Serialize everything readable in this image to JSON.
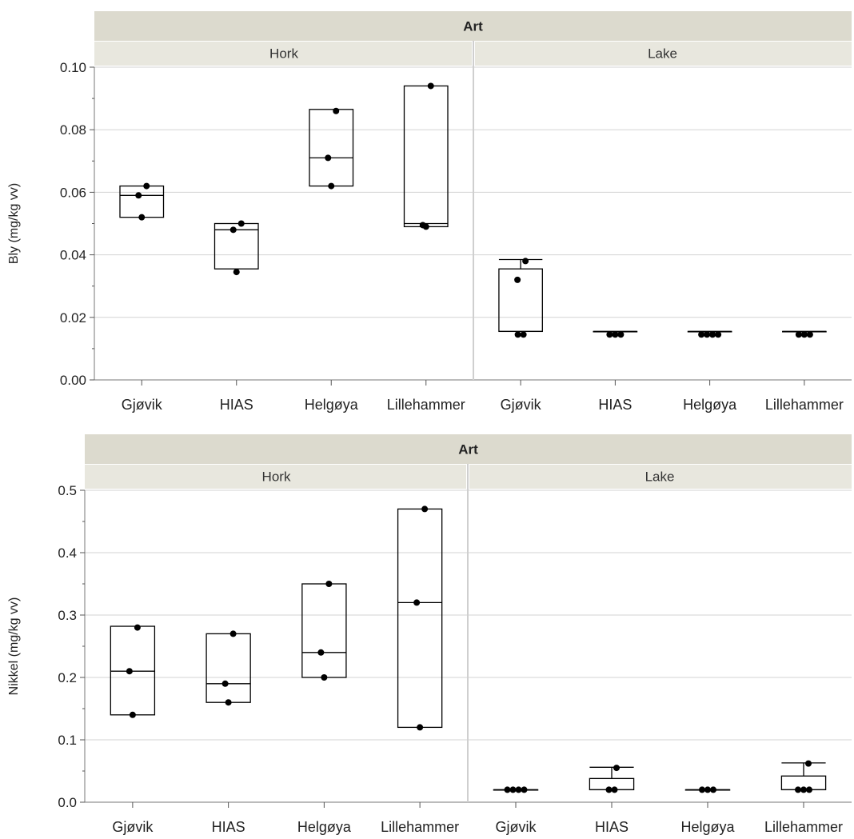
{
  "chart_data": [
    {
      "type": "boxplot",
      "group_header": "Art",
      "facets": [
        "Hork",
        "Lake"
      ],
      "categories": [
        "Gjøvik",
        "HIAS",
        "Helgøya",
        "Lillehammer"
      ],
      "ylabel": "Bly (mg/kg vv)",
      "ylim": [
        0,
        0.1
      ],
      "yticks": [
        "0.00",
        "0.02",
        "0.04",
        "0.06",
        "0.08",
        "0.10"
      ],
      "grid": true,
      "series": [
        {
          "facet": "Hork",
          "boxes": [
            {
              "category": "Gjøvik",
              "q1": 0.052,
              "median": 0.059,
              "q3": 0.062,
              "whisker_low": 0.052,
              "whisker_high": 0.062,
              "points": [
                0.062,
                0.059,
                0.052
              ]
            },
            {
              "category": "HIAS",
              "q1": 0.0355,
              "median": 0.048,
              "q3": 0.05,
              "whisker_low": 0.0355,
              "whisker_high": 0.05,
              "points": [
                0.05,
                0.048,
                0.0345
              ]
            },
            {
              "category": "Helgøya",
              "q1": 0.062,
              "median": 0.071,
              "q3": 0.0865,
              "whisker_low": 0.062,
              "whisker_high": 0.0865,
              "points": [
                0.086,
                0.071,
                0.062
              ]
            },
            {
              "category": "Lillehammer",
              "q1": 0.049,
              "median": 0.05,
              "q3": 0.094,
              "whisker_low": 0.049,
              "whisker_high": 0.094,
              "points": [
                0.094,
                0.0495,
                0.049
              ]
            }
          ]
        },
        {
          "facet": "Lake",
          "boxes": [
            {
              "category": "Gjøvik",
              "q1": 0.0155,
              "median": 0.0155,
              "q3": 0.0355,
              "whisker_low": 0.0155,
              "whisker_high": 0.0385,
              "points": [
                0.038,
                0.032,
                0.0145,
                0.0145
              ]
            },
            {
              "category": "HIAS",
              "q1": 0.0155,
              "median": 0.0155,
              "q3": 0.0155,
              "whisker_low": 0.0155,
              "whisker_high": 0.0155,
              "points": [
                0.0145,
                0.0145,
                0.0145
              ]
            },
            {
              "category": "Helgøya",
              "q1": 0.0155,
              "median": 0.0155,
              "q3": 0.0155,
              "whisker_low": 0.0155,
              "whisker_high": 0.0155,
              "points": [
                0.0145,
                0.0145,
                0.0145,
                0.0145
              ]
            },
            {
              "category": "Lillehammer",
              "q1": 0.0155,
              "median": 0.0155,
              "q3": 0.0155,
              "whisker_low": 0.0155,
              "whisker_high": 0.0155,
              "points": [
                0.0145,
                0.0145,
                0.0145
              ]
            }
          ]
        }
      ]
    },
    {
      "type": "boxplot",
      "group_header": "Art",
      "facets": [
        "Hork",
        "Lake"
      ],
      "categories": [
        "Gjøvik",
        "HIAS",
        "Helgøya",
        "Lillehammer"
      ],
      "ylabel": "Nikkel (mg/kg vv)",
      "ylim": [
        0,
        0.5
      ],
      "yticks": [
        "0.0",
        "0.1",
        "0.2",
        "0.3",
        "0.4",
        "0.5"
      ],
      "grid": true,
      "series": [
        {
          "facet": "Hork",
          "boxes": [
            {
              "category": "Gjøvik",
              "q1": 0.14,
              "median": 0.21,
              "q3": 0.282,
              "whisker_low": 0.14,
              "whisker_high": 0.282,
              "points": [
                0.28,
                0.21,
                0.14
              ]
            },
            {
              "category": "HIAS",
              "q1": 0.16,
              "median": 0.19,
              "q3": 0.27,
              "whisker_low": 0.16,
              "whisker_high": 0.27,
              "points": [
                0.27,
                0.19,
                0.16
              ]
            },
            {
              "category": "Helgøya",
              "q1": 0.2,
              "median": 0.24,
              "q3": 0.35,
              "whisker_low": 0.2,
              "whisker_high": 0.35,
              "points": [
                0.35,
                0.24,
                0.2
              ]
            },
            {
              "category": "Lillehammer",
              "q1": 0.12,
              "median": 0.32,
              "q3": 0.47,
              "whisker_low": 0.12,
              "whisker_high": 0.47,
              "points": [
                0.47,
                0.32,
                0.12
              ]
            }
          ]
        },
        {
          "facet": "Lake",
          "boxes": [
            {
              "category": "Gjøvik",
              "q1": 0.02,
              "median": 0.02,
              "q3": 0.02,
              "whisker_low": 0.02,
              "whisker_high": 0.02,
              "points": [
                0.02,
                0.02,
                0.02,
                0.02
              ]
            },
            {
              "category": "HIAS",
              "q1": 0.02,
              "median": 0.02,
              "q3": 0.038,
              "whisker_low": 0.02,
              "whisker_high": 0.056,
              "points": [
                0.055,
                0.02,
                0.02
              ]
            },
            {
              "category": "Helgøya",
              "q1": 0.02,
              "median": 0.02,
              "q3": 0.02,
              "whisker_low": 0.02,
              "whisker_high": 0.02,
              "points": [
                0.02,
                0.02,
                0.02
              ]
            },
            {
              "category": "Lillehammer",
              "q1": 0.02,
              "median": 0.02,
              "q3": 0.042,
              "whisker_low": 0.02,
              "whisker_high": 0.063,
              "points": [
                0.062,
                0.02,
                0.02,
                0.02
              ]
            }
          ]
        }
      ]
    }
  ]
}
